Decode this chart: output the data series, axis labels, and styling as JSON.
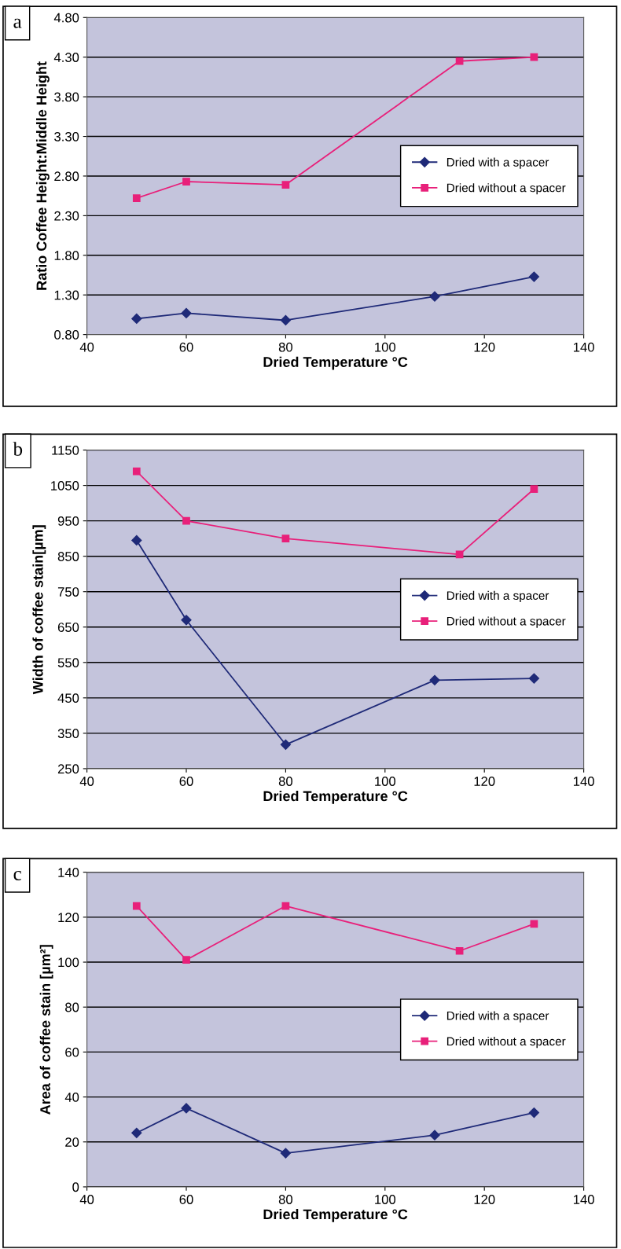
{
  "chart_data": [
    {
      "type": "line",
      "xlabel": "Dried Temperature °C",
      "ylabel": "Ratio Coffee Height:Middle Height",
      "annotations": [
        "a"
      ],
      "xlim": [
        40,
        140
      ],
      "xticks": [
        40,
        60,
        80,
        100,
        120,
        140
      ],
      "ylim": [
        0.8,
        4.8
      ],
      "yticks": [
        {
          "value": 0.8,
          "label": "0.80"
        },
        {
          "value": 1.3,
          "label": "1.30"
        },
        {
          "value": 1.8,
          "label": "1.80"
        },
        {
          "value": 2.3,
          "label": "2.30"
        },
        {
          "value": 2.8,
          "label": "2.80"
        },
        {
          "value": 3.3,
          "label": "3.30"
        },
        {
          "value": 3.8,
          "label": "3.80"
        },
        {
          "value": 4.3,
          "label": "4.30"
        },
        {
          "value": 4.8,
          "label": "4.80"
        }
      ],
      "grid": "y",
      "legend": "right",
      "series": [
        {
          "name": "Dried with a spacer",
          "color": "#1f2a78",
          "marker": "diamond",
          "x": [
            50,
            60,
            80,
            110,
            130
          ],
          "values": [
            1.0,
            1.07,
            0.98,
            1.28,
            1.53
          ]
        },
        {
          "name": "Dried without a spacer",
          "color": "#e8207a",
          "marker": "square",
          "x": [
            50,
            60,
            80,
            115,
            130
          ],
          "values": [
            2.52,
            2.73,
            2.69,
            4.25,
            4.3
          ]
        }
      ]
    },
    {
      "type": "line",
      "xlabel": "Dried Temperature °C",
      "ylabel": "Width of coffee stain[µm]",
      "annotations": [
        "b"
      ],
      "xlim": [
        40,
        140
      ],
      "xticks": [
        40,
        60,
        80,
        100,
        120,
        140
      ],
      "ylim": [
        250,
        1150
      ],
      "yticks": [
        250,
        350,
        450,
        550,
        650,
        750,
        850,
        950,
        1050,
        1150
      ],
      "grid": "y",
      "legend": "right",
      "series": [
        {
          "name": "Dried with a spacer",
          "color": "#1f2a78",
          "marker": "diamond",
          "x": [
            50,
            60,
            80,
            110,
            130
          ],
          "values": [
            895,
            670,
            318,
            500,
            505
          ]
        },
        {
          "name": "Dried without a spacer",
          "color": "#e8207a",
          "marker": "square",
          "x": [
            50,
            60,
            80,
            115,
            130
          ],
          "values": [
            1090,
            950,
            900,
            855,
            1040
          ]
        }
      ]
    },
    {
      "type": "line",
      "xlabel": "Dried Temperature °C",
      "ylabel": "Area of coffee stain [µm²]",
      "annotations": [
        "c"
      ],
      "xlim": [
        40,
        140
      ],
      "xticks": [
        40,
        60,
        80,
        100,
        120,
        140
      ],
      "ylim": [
        0,
        140
      ],
      "yticks": [
        0,
        20,
        40,
        60,
        80,
        100,
        120,
        140
      ],
      "grid": "y",
      "legend": "right",
      "series": [
        {
          "name": "Dried with a spacer",
          "color": "#1f2a78",
          "marker": "diamond",
          "x": [
            50,
            60,
            80,
            110,
            130
          ],
          "values": [
            24,
            35,
            15,
            23,
            33
          ]
        },
        {
          "name": "Dried without a spacer",
          "color": "#e8207a",
          "marker": "square",
          "x": [
            50,
            60,
            80,
            115,
            130
          ],
          "values": [
            125,
            101,
            125,
            105,
            117
          ]
        }
      ]
    }
  ]
}
